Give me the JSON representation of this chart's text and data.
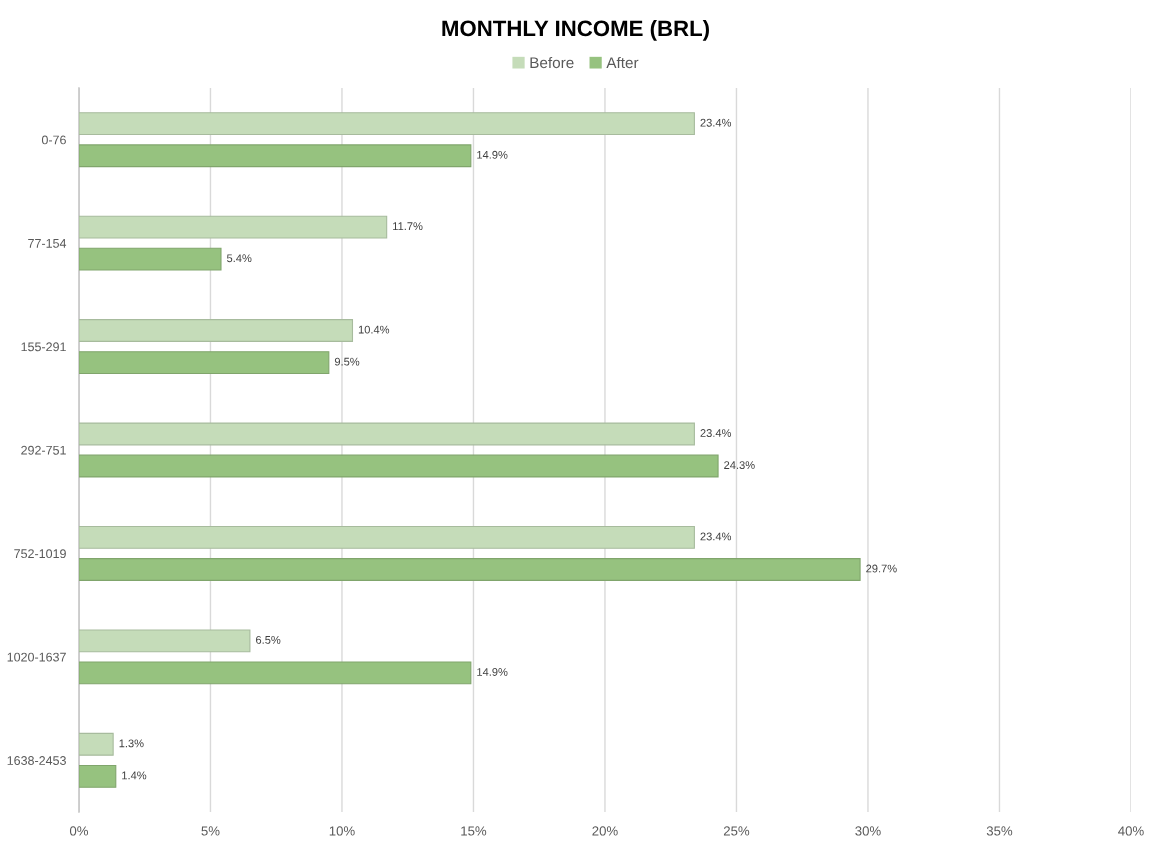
{
  "chart_data": {
    "type": "bar",
    "orientation": "horizontal",
    "title": "MONTHLY INCOME (BRL)",
    "categories": [
      "0-76",
      "77-154",
      "155-291",
      "292-751",
      "752-1019",
      "1020-1637",
      "1638-2453"
    ],
    "series": [
      {
        "name": "Before",
        "color": "#c5dcb9",
        "values": [
          23.4,
          11.7,
          10.4,
          23.4,
          23.4,
          6.5,
          1.3
        ],
        "value_labels": [
          "23.4%",
          "11.7%",
          "10.4%",
          "23.4%",
          "23.4%",
          "6.5%",
          "1.3%"
        ]
      },
      {
        "name": "After",
        "color": "#96c27f",
        "values": [
          14.9,
          5.4,
          9.5,
          24.3,
          29.7,
          14.9,
          1.4
        ],
        "value_labels": [
          "14.9%",
          "5.4%",
          "9.5%",
          "24.3%",
          "29.7%",
          "14.9%",
          "1.4%"
        ]
      }
    ],
    "xlim": [
      0,
      40
    ],
    "xticks": [
      {
        "value": 0,
        "label": "0%"
      },
      {
        "value": 5,
        "label": "5%"
      },
      {
        "value": 10,
        "label": "10%"
      },
      {
        "value": 15,
        "label": "15%"
      },
      {
        "value": 20,
        "label": "20%"
      },
      {
        "value": 25,
        "label": "25%"
      },
      {
        "value": 30,
        "label": "30%"
      },
      {
        "value": 35,
        "label": "35%"
      },
      {
        "value": 40,
        "label": "40%"
      }
    ],
    "grid": "x",
    "legend": "top"
  }
}
